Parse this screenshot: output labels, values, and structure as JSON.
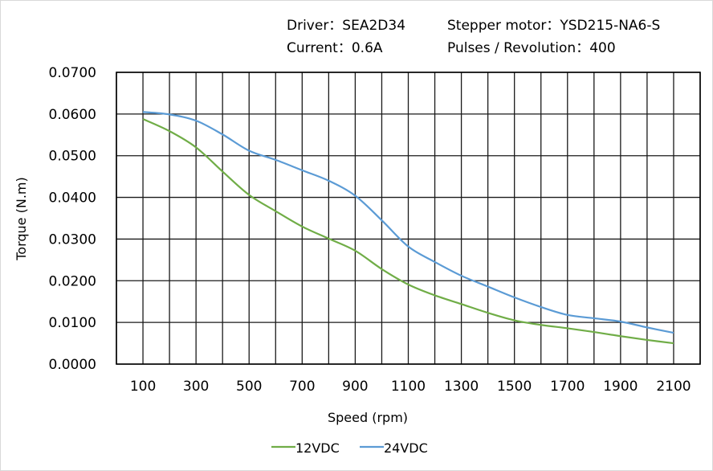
{
  "header": {
    "driver": "Driver：SEA2D34",
    "motor": "Stepper motor：YSD215-NA6-S",
    "current": "Current：0.6A",
    "pulses": "Pulses / Revolution：400"
  },
  "chart_data": {
    "type": "line",
    "title": "",
    "xlabel": "Speed (rpm)",
    "ylabel": "Torque (N.m)",
    "xlim": [
      0,
      2200
    ],
    "ylim": [
      0,
      0.07
    ],
    "grid": true,
    "legend_placement": "bottom",
    "x_ticks": [
      100,
      300,
      500,
      700,
      900,
      1100,
      1300,
      1500,
      1700,
      1900,
      2100
    ],
    "x_tick_labels": [
      "100",
      "300",
      "500",
      "700",
      "900",
      "1100",
      "1300",
      "1500",
      "1700",
      "1900",
      "2100"
    ],
    "y_ticks": [
      0,
      0.01,
      0.02,
      0.03,
      0.04,
      0.05,
      0.06,
      0.07
    ],
    "y_tick_labels": [
      "0.0000",
      "0.0100",
      "0.0200",
      "0.0300",
      "0.0400",
      "0.0500",
      "0.0600",
      "0.0700"
    ],
    "x": [
      100,
      200,
      300,
      400,
      500,
      600,
      700,
      800,
      900,
      1000,
      1100,
      1200,
      1300,
      1400,
      1500,
      1600,
      1700,
      1800,
      1900,
      2000,
      2100
    ],
    "series": [
      {
        "name": "12VDC",
        "color": "#70ad47",
        "values": [
          0.0588,
          0.0559,
          0.052,
          0.0462,
          0.0406,
          0.0367,
          0.033,
          0.0301,
          0.0272,
          0.0228,
          0.0191,
          0.0165,
          0.0144,
          0.0123,
          0.0105,
          0.0094,
          0.0086,
          0.0077,
          0.0067,
          0.0058,
          0.005
        ]
      },
      {
        "name": "24VDC",
        "color": "#5b9bd5",
        "values": [
          0.0605,
          0.0599,
          0.0584,
          0.0551,
          0.0512,
          0.049,
          0.0465,
          0.044,
          0.0404,
          0.0345,
          0.0282,
          0.0245,
          0.0212,
          0.0186,
          0.016,
          0.0137,
          0.0118,
          0.011,
          0.0102,
          0.0088,
          0.0075
        ]
      }
    ]
  }
}
